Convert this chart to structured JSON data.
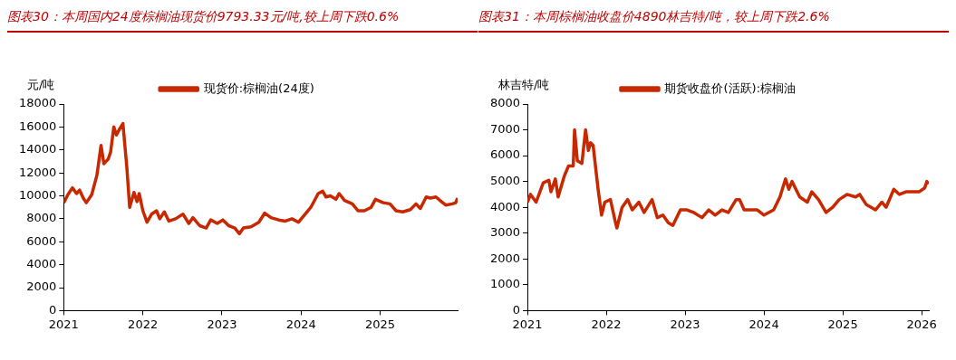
{
  "chart_data": [
    {
      "type": "line",
      "title": "图表30：本周国内24度棕榈油现货价9793.33元/吨,较上周下跌0.6%",
      "ylabel": "元/吨",
      "legend": "top",
      "grid": false,
      "line_style": "solid",
      "marker": "none",
      "xlim": [
        "2021-01-01",
        "2025-12-24"
      ],
      "xticks": [
        "2021",
        "2022",
        "2023",
        "2024",
        "2025"
      ],
      "ylim": [
        0,
        18000
      ],
      "yticks": [
        0,
        2000,
        4000,
        6000,
        8000,
        10000,
        12000,
        14000,
        16000,
        18000
      ],
      "series": [
        {
          "name": "现货价:棕榈油(24度)",
          "color": "#c82800",
          "x": [
            "2021-01-01",
            "2021-01-20",
            "2021-02-10",
            "2021-03-01",
            "2021-03-15",
            "2021-04-01",
            "2021-04-15",
            "2021-05-10",
            "2021-06-03",
            "2021-06-22",
            "2021-07-05",
            "2021-07-25",
            "2021-08-05",
            "2021-08-20",
            "2021-09-01",
            "2021-09-15",
            "2021-10-01",
            "2021-10-19",
            "2021-11-01",
            "2021-11-21",
            "2021-12-05",
            "2021-12-15",
            "2022-01-01",
            "2022-01-20",
            "2022-02-10",
            "2022-03-05",
            "2022-03-20",
            "2022-04-10",
            "2022-05-01",
            "2022-06-01",
            "2022-07-05",
            "2022-08-01",
            "2022-08-20",
            "2022-09-20",
            "2022-10-20",
            "2022-11-10",
            "2022-12-10",
            "2023-01-05",
            "2023-02-01",
            "2023-03-01",
            "2023-03-22",
            "2023-04-10",
            "2023-05-15",
            "2023-06-20",
            "2023-07-17",
            "2023-08-15",
            "2023-09-20",
            "2023-10-20",
            "2023-11-20",
            "2023-12-20",
            "2024-01-15",
            "2024-02-15",
            "2024-03-20",
            "2024-04-10",
            "2024-04-25",
            "2024-05-15",
            "2024-06-10",
            "2024-06-25",
            "2024-07-20",
            "2024-08-25",
            "2024-09-20",
            "2024-10-20",
            "2024-11-20",
            "2024-12-10",
            "2025-01-15",
            "2025-02-15",
            "2025-03-15",
            "2025-04-15",
            "2025-05-20",
            "2025-06-15",
            "2025-07-05",
            "2025-08-01",
            "2025-08-20",
            "2025-09-15",
            "2025-10-10",
            "2025-10-30",
            "2025-11-30",
            "2025-12-15",
            "2025-12-24"
          ],
          "values": [
            9400,
            10100,
            10700,
            10200,
            10500,
            9800,
            9400,
            10100,
            11800,
            14400,
            12800,
            13200,
            13800,
            16000,
            15300,
            15800,
            16300,
            12500,
            9000,
            10300,
            9500,
            10200,
            8700,
            7700,
            8400,
            8700,
            8000,
            8600,
            7800,
            8000,
            8400,
            7600,
            8100,
            7400,
            7200,
            7900,
            7600,
            7900,
            7400,
            7200,
            6700,
            7200,
            7300,
            7700,
            8500,
            8100,
            7900,
            7800,
            8000,
            7700,
            8300,
            9000,
            10200,
            10400,
            9900,
            10000,
            9700,
            10200,
            9600,
            9300,
            8700,
            8700,
            9000,
            9700,
            9400,
            9300,
            8700,
            8600,
            8800,
            9300,
            8900,
            9900,
            9800,
            9900,
            9500,
            9200,
            9300,
            9400,
            9800
          ]
        }
      ]
    },
    {
      "type": "line",
      "title": "图表31：本周棕榈油收盘价4890林吉特/吨，较上周下跌2.6%",
      "ylabel": "林吉特/吨",
      "legend": "top",
      "grid": false,
      "line_style": "solid",
      "marker": "none",
      "xlim": [
        "2021-01-01",
        "2026-02-03"
      ],
      "xticks": [
        "2021",
        "2022",
        "2023",
        "2024",
        "2025",
        "2026"
      ],
      "ylim": [
        0,
        8000
      ],
      "yticks": [
        0,
        1000,
        2000,
        3000,
        4000,
        5000,
        6000,
        7000,
        8000
      ],
      "series": [
        {
          "name": "期货收盘价(活跃):棕榈油",
          "color": "#c82800",
          "x": [
            "2021-01-01",
            "2021-01-15",
            "2021-02-10",
            "2021-03-15",
            "2021-04-10",
            "2021-04-20",
            "2021-05-10",
            "2021-05-23",
            "2021-06-20",
            "2021-07-10",
            "2021-08-01",
            "2021-08-07",
            "2021-08-20",
            "2021-09-10",
            "2021-09-27",
            "2021-10-10",
            "2021-10-20",
            "2021-11-01",
            "2021-11-24",
            "2021-12-10",
            "2021-12-25",
            "2022-01-20",
            "2022-02-10",
            "2022-02-19",
            "2022-03-15",
            "2022-04-10",
            "2022-05-01",
            "2022-06-01",
            "2022-06-25",
            "2022-08-01",
            "2022-08-25",
            "2022-09-20",
            "2022-10-15",
            "2022-11-05",
            "2022-12-10",
            "2023-01-10",
            "2023-02-10",
            "2023-03-20",
            "2023-04-20",
            "2023-05-20",
            "2023-06-20",
            "2023-07-20",
            "2023-08-25",
            "2023-09-10",
            "2023-10-01",
            "2023-11-01",
            "2023-12-01",
            "2024-01-01",
            "2024-02-15",
            "2024-03-15",
            "2024-04-10",
            "2024-04-25",
            "2024-05-10",
            "2024-06-15",
            "2024-07-20",
            "2024-08-10",
            "2024-09-10",
            "2024-10-15",
            "2024-11-15",
            "2024-12-15",
            "2025-01-20",
            "2025-03-01",
            "2025-03-20",
            "2025-04-20",
            "2025-06-01",
            "2025-07-01",
            "2025-07-20",
            "2025-08-25",
            "2025-09-20",
            "2025-10-20",
            "2025-11-20",
            "2025-12-20",
            "2026-01-15",
            "2026-01-25",
            "2026-02-01"
          ],
          "values": [
            4200,
            4500,
            4200,
            4950,
            5050,
            4600,
            5100,
            4400,
            5200,
            5600,
            5600,
            7000,
            5800,
            5700,
            7000,
            6200,
            6500,
            6400,
            4700,
            3700,
            4200,
            4300,
            3500,
            3200,
            4000,
            4300,
            3900,
            4200,
            3800,
            4300,
            3600,
            3700,
            3400,
            3300,
            3900,
            3900,
            3800,
            3600,
            3900,
            3700,
            3900,
            3800,
            4300,
            4300,
            3900,
            3900,
            3900,
            3700,
            3900,
            4400,
            5100,
            4700,
            5000,
            4400,
            4200,
            4600,
            4300,
            3800,
            4000,
            4300,
            4500,
            4400,
            4500,
            4100,
            3900,
            4200,
            4000,
            4700,
            4500,
            4600,
            4600,
            4600,
            4750,
            5000,
            4900
          ]
        }
      ]
    }
  ]
}
